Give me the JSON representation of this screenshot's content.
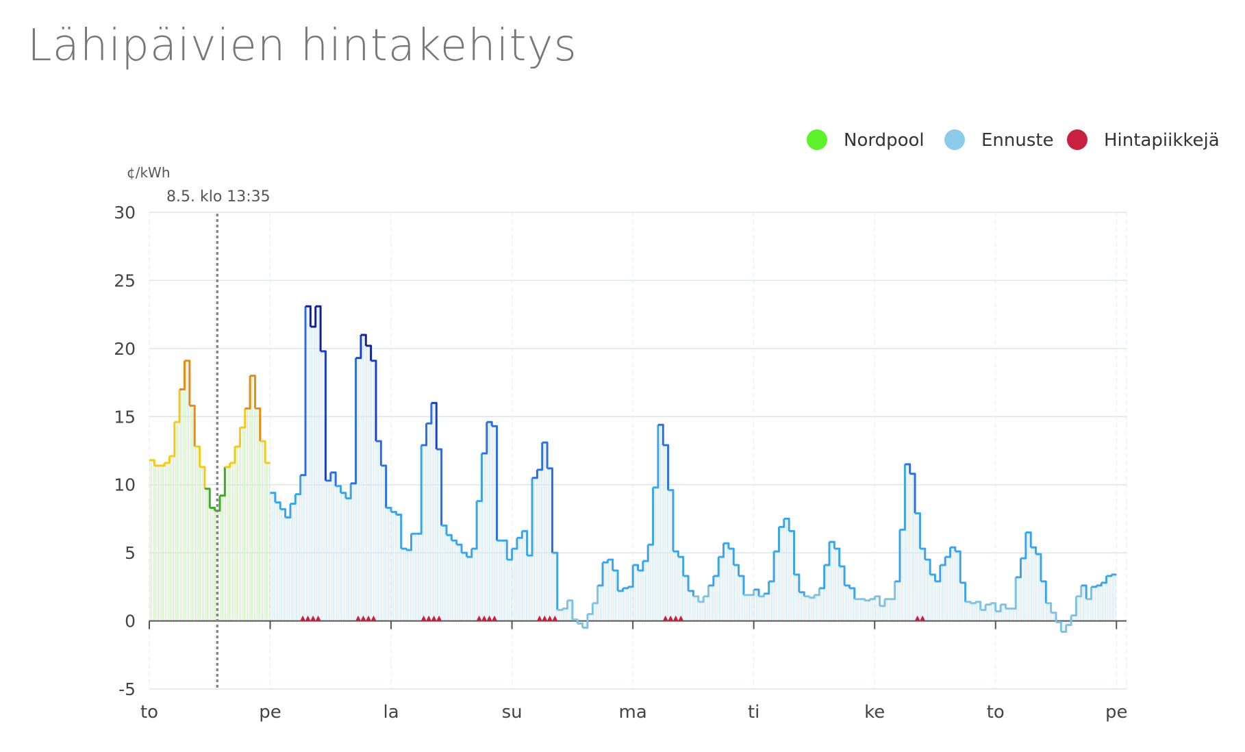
{
  "page": {
    "title": "Lähipäivien hintakehitys"
  },
  "colors": {
    "nordpool": "#5cf22a",
    "ennuste": "#8ccbea",
    "hintapiikkeja": "#c8203e",
    "nordpool_fill": "#c9efb9",
    "ennuste_fill": "#cfe7f4",
    "now_line": "#888888",
    "grid": "#dde4ee",
    "price_scale": [
      {
        "from": -10,
        "to": 2,
        "color": "#7cc3e8"
      },
      {
        "from": 2,
        "to": 10,
        "color": "#3aa6e9"
      },
      {
        "from": 10,
        "to": 15,
        "color": "#2a70e0"
      },
      {
        "from": 15,
        "to": 20,
        "color": "#1a3fd0"
      },
      {
        "from": 20,
        "to": 99,
        "color": "#14238f"
      }
    ],
    "nordpool_scale": [
      {
        "from": -10,
        "to": 10,
        "color": "#3fab22"
      },
      {
        "from": 10,
        "to": 15,
        "color": "#f4c91a"
      },
      {
        "from": 15,
        "to": 99,
        "color": "#ea8a10"
      }
    ]
  },
  "chart_data": {
    "type": "line",
    "step": true,
    "ylabel": "¢/kWh",
    "ylim": [
      -5,
      30
    ],
    "yticks": [
      -5,
      0,
      5,
      10,
      15,
      20,
      25,
      30
    ],
    "x_unit": "hours",
    "xlim": [
      0,
      194
    ],
    "x_ticks": [
      {
        "x": 0,
        "label": "to"
      },
      {
        "x": 24,
        "label": "pe"
      },
      {
        "x": 48,
        "label": "la"
      },
      {
        "x": 72,
        "label": "su"
      },
      {
        "x": 96,
        "label": "ma"
      },
      {
        "x": 120,
        "label": "ti"
      },
      {
        "x": 144,
        "label": "ke"
      },
      {
        "x": 168,
        "label": "to"
      },
      {
        "x": 192,
        "label": "pe"
      }
    ],
    "now_marker": {
      "x": 13.5,
      "label": "8.5. klo 13:35"
    },
    "legend": {
      "position": "top-right",
      "items": [
        {
          "label": "Nordpool",
          "color": "#5cf22a"
        },
        {
          "label": "Ennuste",
          "color": "#8ccbea"
        },
        {
          "label": "Hintapiikkejä",
          "color": "#c8203e"
        }
      ]
    },
    "series": [
      {
        "name": "Nordpool",
        "x_start": 0,
        "values": [
          11.8,
          11.4,
          11.4,
          11.6,
          12.1,
          14.6,
          17.0,
          19.1,
          15.8,
          12.8,
          11.3,
          9.7,
          8.3,
          8.1,
          9.2,
          11.3,
          11.6,
          12.8,
          14.2,
          15.6,
          18.0,
          15.6,
          13.2,
          11.6
        ]
      },
      {
        "name": "Ennuste",
        "x_start": 24,
        "values": [
          9.4,
          8.7,
          8.2,
          7.6,
          8.6,
          9.3,
          10.7,
          23.1,
          21.6,
          23.1,
          19.8,
          10.3,
          10.9,
          9.9,
          9.4,
          9.0,
          10.1,
          19.3,
          21.0,
          20.2,
          19.1,
          13.2,
          11.4,
          8.3,
          8.0,
          7.8,
          5.3,
          5.2,
          6.4,
          6.4,
          12.9,
          14.5,
          16.0,
          12.6,
          7.0,
          6.3,
          5.9,
          5.6,
          5.0,
          4.7,
          5.3,
          8.8,
          12.3,
          14.6,
          14.3,
          5.9,
          5.9,
          4.5,
          5.3,
          6.1,
          6.6,
          4.8,
          10.5,
          11.1,
          13.1,
          11.2,
          5.0,
          0.8,
          0.9,
          1.5,
          0.1,
          -0.2,
          -0.5,
          0.5,
          1.3,
          2.6,
          4.3,
          4.5,
          3.7,
          2.2,
          2.4,
          2.5,
          4.1,
          3.7,
          4.4,
          5.6,
          9.8,
          14.4,
          12.9,
          9.6,
          5.1,
          4.7,
          3.3,
          2.2,
          1.8,
          1.4,
          1.8,
          2.6,
          3.3,
          4.7,
          5.7,
          5.3,
          4.1,
          3.3,
          1.9,
          1.9,
          2.3,
          1.8,
          2.0,
          2.9,
          5.1,
          6.9,
          7.5,
          6.6,
          3.4,
          2.1,
          1.8,
          1.7,
          1.9,
          2.4,
          4.1,
          5.8,
          5.3,
          4.0,
          2.6,
          2.4,
          1.6,
          1.6,
          1.5,
          1.6,
          1.8,
          1.1,
          1.6,
          1.6,
          2.9,
          6.7,
          11.5,
          10.8,
          7.9,
          5.3,
          4.5,
          3.4,
          2.9,
          4.1,
          4.7,
          5.4,
          5.1,
          2.8,
          1.4,
          1.3,
          1.4,
          0.8,
          1.2,
          1.3,
          0.7,
          1.2,
          0.9,
          0.9,
          3.2,
          4.6,
          6.5,
          5.4,
          4.9,
          2.9,
          1.3,
          0.6,
          -0.1,
          -0.8,
          -0.3,
          0.4,
          1.8,
          2.6,
          1.6,
          2.5,
          2.6,
          2.8,
          3.3,
          3.4
        ]
      }
    ],
    "spikes": [
      {
        "x": 32,
        "count": 4
      },
      {
        "x": 43,
        "count": 4
      },
      {
        "x": 56,
        "count": 4
      },
      {
        "x": 67,
        "count": 4
      },
      {
        "x": 79,
        "count": 4
      },
      {
        "x": 104,
        "count": 4
      },
      {
        "x": 153,
        "count": 2
      }
    ]
  }
}
